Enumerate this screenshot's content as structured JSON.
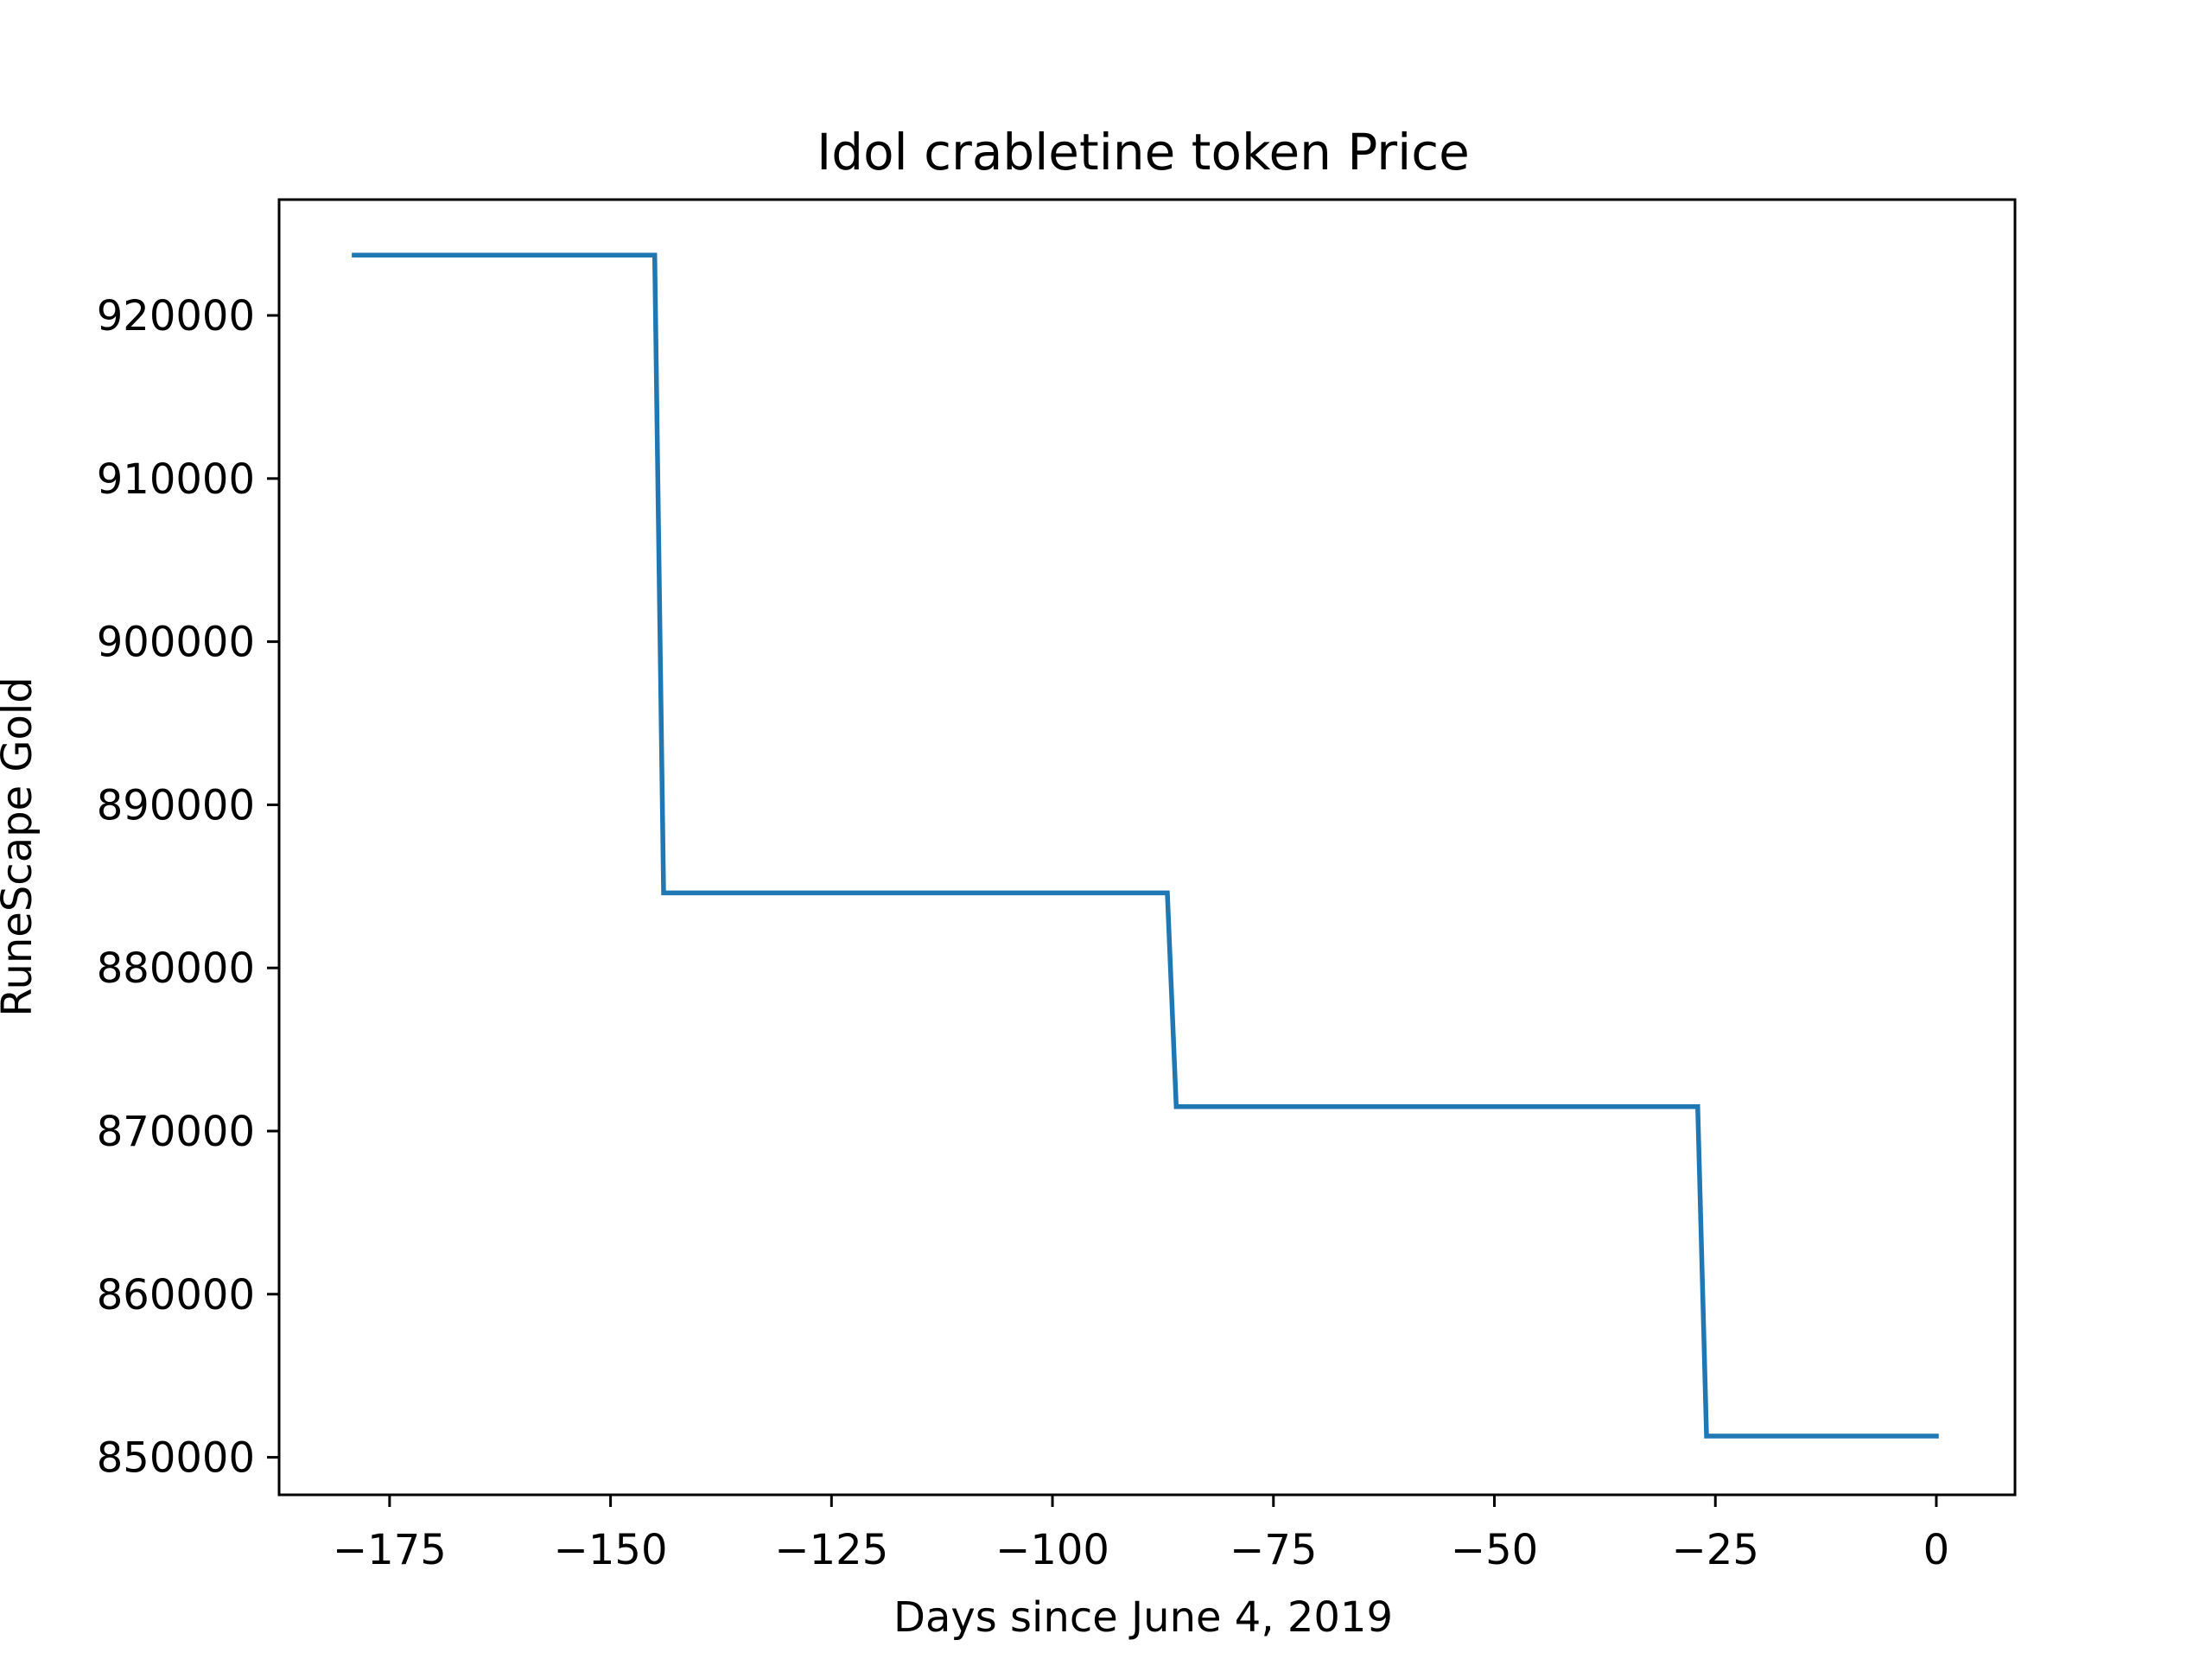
{
  "chart_data": {
    "type": "line",
    "title": "Idol crabletine token Price",
    "xlabel": "Days since June 4, 2019",
    "ylabel": "RuneScape Gold",
    "xlim": [
      -187.5,
      8.9
    ],
    "ylim": [
      847700,
      927100
    ],
    "xticks": [
      -175,
      -150,
      -125,
      -100,
      -75,
      -50,
      -25,
      0
    ],
    "xtick_labels": [
      "−175",
      "−150",
      "−125",
      "−100",
      "−75",
      "−50",
      "−25",
      "0"
    ],
    "yticks": [
      850000,
      860000,
      870000,
      880000,
      890000,
      900000,
      910000,
      920000
    ],
    "ytick_labels": [
      "850000",
      "860000",
      "870000",
      "880000",
      "890000",
      "900000",
      "910000",
      "920000"
    ],
    "grid": false,
    "series": [
      {
        "color": "#1f77b4",
        "x": [
          -179,
          -145,
          -144,
          -87,
          -86,
          -27,
          -26,
          0
        ],
        "y": [
          923700,
          923700,
          884600,
          884600,
          871500,
          871500,
          851300,
          851300
        ]
      }
    ]
  }
}
